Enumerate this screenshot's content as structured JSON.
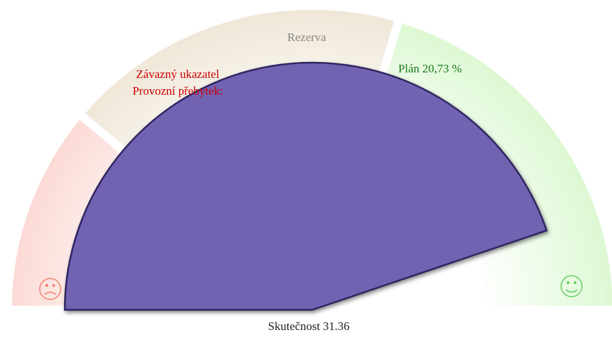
{
  "chart_data": {
    "type": "gauge",
    "range": [
      0,
      35
    ],
    "bands": [
      {
        "from": 0,
        "to": 7.8,
        "color": "#fbd9d3"
      },
      {
        "from": 7.8,
        "to": 20.73,
        "color": "#efe6d6"
      },
      {
        "from": 20.73,
        "to": 35,
        "color": "#dcf8d2"
      }
    ],
    "band_label": "Rezerva",
    "target": {
      "lines": [
        "Závazný ukazatel",
        "Provozní přebytek:"
      ],
      "color": "#cc0000"
    },
    "plan": {
      "label": "Plán 20,73 %",
      "value": 20.73,
      "color": "#1a7a1a"
    },
    "actual": {
      "label": "Skutečnost 31.36",
      "value": 31.36,
      "color": "#7262b2"
    }
  }
}
